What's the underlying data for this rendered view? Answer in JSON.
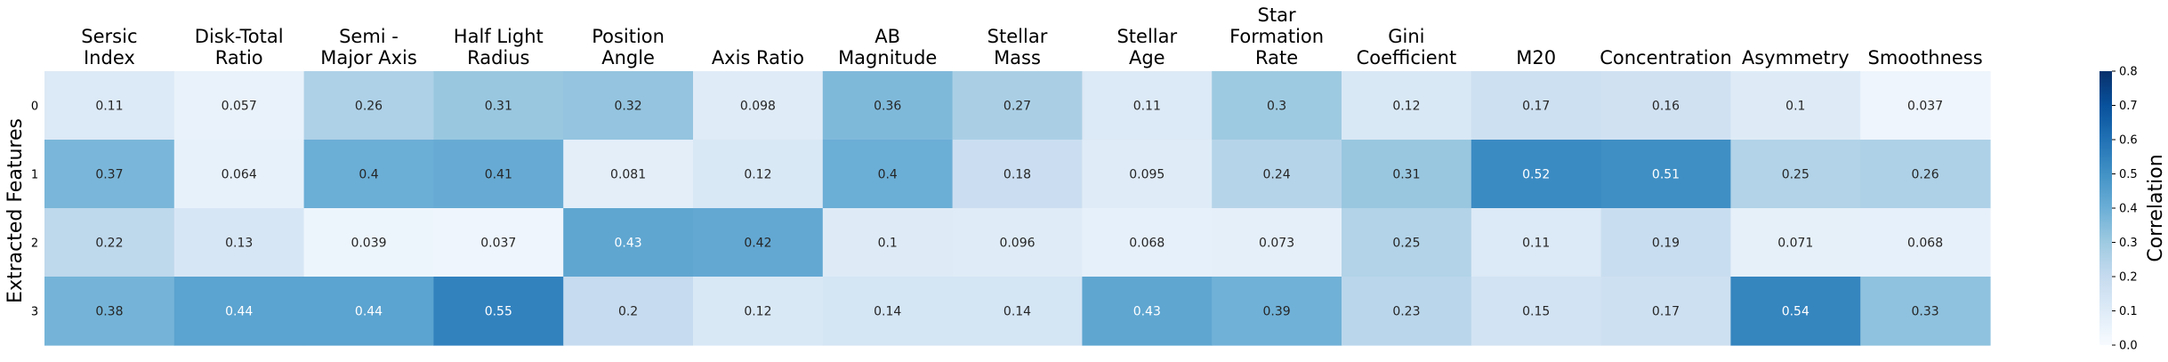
{
  "chart_data": {
    "type": "heatmap",
    "columns": [
      [
        "Sersic",
        "Index"
      ],
      [
        "Disk-Total",
        "Ratio"
      ],
      [
        "Semi -",
        "Major Axis"
      ],
      [
        "Half Light",
        "Radius"
      ],
      [
        "Position",
        "Angle"
      ],
      [
        "Axis Ratio"
      ],
      [
        "AB",
        "Magnitude"
      ],
      [
        "Stellar",
        "Mass"
      ],
      [
        "Stellar",
        "Age"
      ],
      [
        "Star",
        "Formation",
        "Rate"
      ],
      [
        "Gini",
        "Coefficient"
      ],
      [
        "M20"
      ],
      [
        "Concentration"
      ],
      [
        "Asymmetry"
      ],
      [
        "Smoothness"
      ]
    ],
    "rows": [
      "0",
      "1",
      "2",
      "3"
    ],
    "values": [
      [
        0.11,
        0.057,
        0.26,
        0.31,
        0.32,
        0.098,
        0.36,
        0.27,
        0.11,
        0.3,
        0.12,
        0.17,
        0.16,
        0.1,
        0.037
      ],
      [
        0.37,
        0.064,
        0.4,
        0.41,
        0.081,
        0.12,
        0.4,
        0.18,
        0.095,
        0.24,
        0.31,
        0.52,
        0.51,
        0.25,
        0.26
      ],
      [
        0.22,
        0.13,
        0.039,
        0.037,
        0.43,
        0.42,
        0.1,
        0.096,
        0.068,
        0.073,
        0.25,
        0.11,
        0.19,
        0.071,
        0.068
      ],
      [
        0.38,
        0.44,
        0.44,
        0.55,
        0.2,
        0.12,
        0.14,
        0.14,
        0.43,
        0.39,
        0.23,
        0.15,
        0.17,
        0.54,
        0.33
      ]
    ],
    "ylabel": "Extracted Features",
    "colorbar": {
      "label": "Correlation",
      "range": [
        0.0,
        0.8
      ],
      "ticks": [
        "0.0",
        "0.1",
        "0.2",
        "0.3",
        "0.4",
        "0.5",
        "0.6",
        "0.7",
        "0.8"
      ]
    },
    "colormap": "Blues",
    "colormap_low": "#f7fbff",
    "colormap_high": "#08306b"
  }
}
